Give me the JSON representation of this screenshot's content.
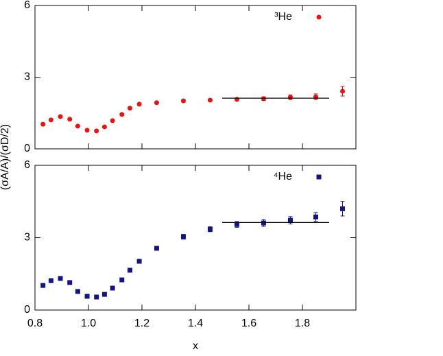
{
  "chart_data": [
    {
      "type": "scatter",
      "ylabel": "(σA/A)/(σD/2)",
      "marker": "circle",
      "xlim": [
        0.8,
        2.0
      ],
      "ylim": [
        0,
        6
      ],
      "yticks": [
        0,
        3,
        6
      ],
      "xticks": [
        0.8,
        {
          "value": 1,
          "label": "1.0"
        },
        1.2,
        1.4,
        1.6,
        1.8
      ],
      "show_xtick_labels": false,
      "legend": "top-right",
      "series": [
        {
          "name": "³He",
          "color": "#ee1111",
          "x": [
            0.83,
            0.86,
            0.895,
            0.93,
            0.96,
            0.995,
            1.03,
            1.06,
            1.09,
            1.125,
            1.155,
            1.19,
            1.255,
            1.355,
            1.455,
            1.555,
            1.655,
            1.755,
            1.85,
            1.95
          ],
          "values": [
            1.03,
            1.21,
            1.35,
            1.24,
            0.95,
            0.78,
            0.75,
            0.92,
            1.18,
            1.44,
            1.7,
            1.87,
            1.93,
            2.01,
            2.04,
            2.07,
            2.1,
            2.16,
            2.18,
            2.41
          ],
          "errors": [
            0.04,
            0.04,
            0.04,
            0.04,
            0.04,
            0.04,
            0.04,
            0.04,
            0.04,
            0.04,
            0.04,
            0.05,
            0.05,
            0.05,
            0.05,
            0.06,
            0.08,
            0.1,
            0.12,
            0.2
          ]
        }
      ],
      "fit": {
        "color": "#000000",
        "x": [
          1.5,
          1.9
        ],
        "y": [
          2.12,
          2.12
        ]
      }
    },
    {
      "type": "scatter",
      "xlabel": "x",
      "marker": "square",
      "xlim": [
        0.8,
        2.0
      ],
      "ylim": [
        0,
        6
      ],
      "yticks": [
        0,
        3,
        6
      ],
      "xticks": [
        0.8,
        {
          "value": 1,
          "label": "1.0"
        },
        1.2,
        1.4,
        1.6,
        1.8
      ],
      "show_xtick_labels": true,
      "legend": "top-right",
      "series": [
        {
          "name": "⁴He",
          "color": "#141482",
          "x": [
            0.83,
            0.86,
            0.895,
            0.93,
            0.96,
            0.995,
            1.03,
            1.06,
            1.09,
            1.125,
            1.155,
            1.19,
            1.255,
            1.355,
            1.455,
            1.555,
            1.655,
            1.755,
            1.85,
            1.95
          ],
          "values": [
            1.02,
            1.22,
            1.31,
            1.14,
            0.77,
            0.57,
            0.54,
            0.65,
            0.91,
            1.25,
            1.65,
            2.02,
            2.56,
            3.04,
            3.35,
            3.55,
            3.61,
            3.72,
            3.86,
            4.2
          ],
          "errors": [
            0.04,
            0.04,
            0.04,
            0.04,
            0.04,
            0.04,
            0.04,
            0.04,
            0.04,
            0.04,
            0.05,
            0.05,
            0.08,
            0.1,
            0.1,
            0.12,
            0.14,
            0.15,
            0.18,
            0.3
          ]
        }
      ],
      "fit": {
        "color": "#000000",
        "x": [
          1.5,
          1.9
        ],
        "y": [
          3.63,
          3.63
        ]
      }
    }
  ]
}
